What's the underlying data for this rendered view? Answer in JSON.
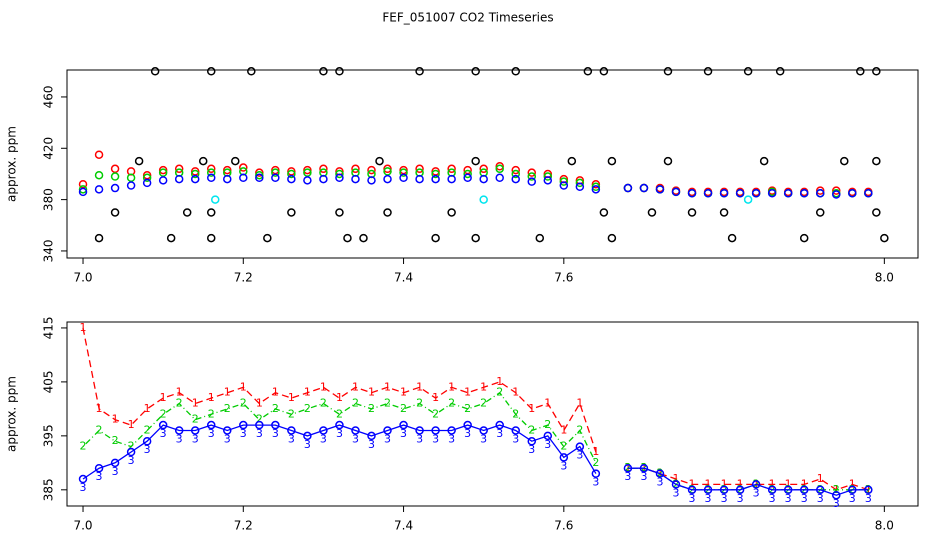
{
  "title": "FEF_051007  CO2 Timeseries",
  "chart_data": [
    {
      "type": "scatter",
      "ylabel": "approx. ppm",
      "xlim": [
        6.98,
        8.042
      ],
      "ylim": [
        334.5,
        481
      ],
      "xticks": [
        {
          "value": 7,
          "label": "7.0"
        },
        7.2,
        7.4,
        7.6,
        {
          "value": 8,
          "label": "8.0"
        }
      ],
      "yticks": [
        340,
        380,
        420,
        460
      ],
      "x": [
        7.0,
        7.02,
        7.04,
        7.06,
        7.08,
        7.1,
        7.12,
        7.14,
        7.16,
        7.18,
        7.2,
        7.22,
        7.24,
        7.26,
        7.28,
        7.3,
        7.32,
        7.34,
        7.36,
        7.38,
        7.4,
        7.42,
        7.44,
        7.46,
        7.48,
        7.5,
        7.52,
        7.54,
        7.56,
        7.58,
        7.6,
        7.62,
        7.64,
        7.66,
        7.68,
        7.7,
        7.72,
        7.74,
        7.76,
        7.78,
        7.8,
        7.82,
        7.84,
        7.86,
        7.88,
        7.9,
        7.92,
        7.94,
        7.96,
        7.98
      ],
      "series": [
        {
          "color": "#ff0000",
          "values": [
            392,
            415,
            404,
            402,
            399,
            403,
            404,
            402,
            404,
            403,
            405,
            401,
            403,
            402,
            403,
            404,
            402,
            404,
            403,
            404,
            403,
            404,
            402,
            404,
            403,
            404,
            406,
            403,
            401,
            400,
            396,
            395,
            392,
            null,
            389,
            389,
            389,
            387,
            386,
            386,
            386,
            386,
            386,
            387,
            386,
            386,
            387,
            387,
            386,
            386
          ]
        },
        {
          "color": "#00cc00",
          "values": [
            388,
            399,
            398,
            397,
            397,
            401,
            401,
            400,
            401,
            401,
            402,
            399,
            401,
            400,
            401,
            401,
            400,
            401,
            400,
            402,
            401,
            401,
            400,
            401,
            400,
            401,
            404,
            400,
            398,
            398,
            394,
            393,
            390,
            null,
            389,
            389,
            388,
            386,
            385,
            385,
            385,
            385,
            385,
            386,
            385,
            385,
            385,
            385,
            385,
            385
          ]
        },
        {
          "color": "#0000ff",
          "values": [
            386,
            388,
            389,
            391,
            393,
            395,
            396,
            396,
            397,
            396,
            397,
            397,
            397,
            396,
            395,
            396,
            397,
            396,
            395,
            396,
            397,
            396,
            396,
            396,
            397,
            396,
            397,
            396,
            394,
            395,
            391,
            390,
            388,
            null,
            389,
            389,
            388,
            386,
            385,
            385,
            385,
            385,
            385,
            385,
            385,
            385,
            385,
            384,
            385,
            385
          ]
        },
        {
          "color": "#000000",
          "x": [
            7.09,
            7.16,
            7.21,
            7.3,
            7.32,
            7.42,
            7.49,
            7.54,
            7.63,
            7.65,
            7.73,
            7.78,
            7.83,
            7.87,
            7.97,
            7.99,
            7.02,
            7.11,
            7.16,
            7.23,
            7.33,
            7.35,
            7.44,
            7.49,
            7.57,
            7.66,
            7.81,
            7.9,
            8.0,
            7.04,
            7.13,
            7.16,
            7.26,
            7.32,
            7.38,
            7.46,
            7.65,
            7.71,
            7.76,
            7.8,
            7.92,
            7.99,
            7.07,
            7.15,
            7.19,
            7.37,
            7.49,
            7.61,
            7.66,
            7.73,
            7.85,
            7.95,
            7.99
          ],
          "values": [
            480,
            480,
            480,
            480,
            480,
            480,
            480,
            480,
            480,
            480,
            480,
            480,
            480,
            480,
            480,
            480,
            350,
            350,
            350,
            350,
            350,
            350,
            350,
            350,
            350,
            350,
            350,
            350,
            350,
            370,
            370,
            370,
            370,
            370,
            370,
            370,
            370,
            370,
            370,
            370,
            370,
            370,
            410,
            410,
            410,
            410,
            410,
            410,
            410,
            410,
            410,
            410,
            410
          ]
        },
        {
          "color": "#00e5ee",
          "x": [
            7.165,
            7.5,
            7.83
          ],
          "values": [
            380,
            380,
            380
          ]
        }
      ]
    },
    {
      "type": "line",
      "ylabel": "approx. ppm",
      "xlim": [
        6.98,
        8.042
      ],
      "ylim": [
        382,
        416.1
      ],
      "xticks": [
        {
          "value": 7,
          "label": "7.0"
        },
        7.2,
        7.4,
        7.6,
        {
          "value": 8,
          "label": "8.0"
        }
      ],
      "yticks": [
        385,
        395,
        405,
        415
      ],
      "x": [
        7.0,
        7.02,
        7.04,
        7.06,
        7.08,
        7.1,
        7.12,
        7.14,
        7.16,
        7.18,
        7.2,
        7.22,
        7.24,
        7.26,
        7.28,
        7.3,
        7.32,
        7.34,
        7.36,
        7.38,
        7.4,
        7.42,
        7.44,
        7.46,
        7.48,
        7.5,
        7.52,
        7.54,
        7.56,
        7.58,
        7.6,
        7.62,
        7.64,
        7.66,
        7.68,
        7.7,
        7.72,
        7.74,
        7.76,
        7.78,
        7.8,
        7.82,
        7.84,
        7.86,
        7.88,
        7.9,
        7.92,
        7.94,
        7.96,
        7.98
      ],
      "series": [
        {
          "color": "#ff0000",
          "pch": "1",
          "linestyle": "dashed",
          "values": [
            415,
            400,
            398,
            397,
            400,
            402,
            403,
            401,
            402,
            403,
            404,
            401,
            403,
            402,
            403,
            404,
            402,
            404,
            403,
            404,
            403,
            404,
            402,
            404,
            403,
            404,
            405,
            403,
            400,
            401,
            396,
            401,
            392,
            null,
            389,
            389,
            388,
            387,
            386,
            386,
            386,
            386,
            386,
            386,
            386,
            386,
            387,
            385,
            386,
            385
          ]
        },
        {
          "color": "#00cc00",
          "pch": "2",
          "linestyle": "dotdash",
          "values": [
            393,
            396,
            394,
            393,
            396,
            399,
            401,
            398,
            399,
            400,
            401,
            398,
            400,
            399,
            400,
            401,
            399,
            401,
            400,
            401,
            400,
            401,
            399,
            401,
            400,
            401,
            403,
            399,
            396,
            397,
            393,
            396,
            390,
            null,
            389,
            389,
            388,
            386,
            385,
            385,
            385,
            385,
            386,
            385,
            385,
            385,
            385,
            385,
            385,
            385
          ]
        },
        {
          "color": "#0000ff",
          "pch": "3",
          "linestyle": "solid",
          "circles": true,
          "values": [
            387,
            389,
            390,
            392,
            394,
            397,
            396,
            396,
            397,
            396,
            397,
            397,
            397,
            396,
            395,
            396,
            397,
            396,
            395,
            396,
            397,
            396,
            396,
            396,
            397,
            396,
            397,
            396,
            394,
            395,
            391,
            393,
            388,
            null,
            389,
            389,
            388,
            386,
            385,
            385,
            385,
            385,
            386,
            385,
            385,
            385,
            385,
            384,
            385,
            385
          ]
        }
      ]
    }
  ]
}
